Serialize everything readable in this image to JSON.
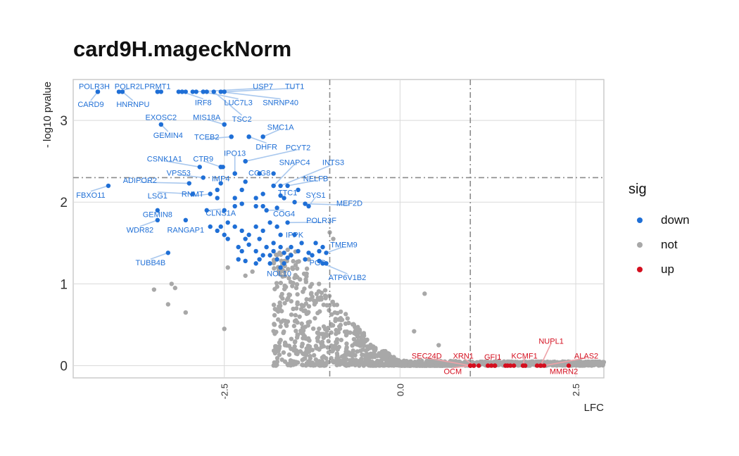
{
  "colors": {
    "down": "#1f6fd6",
    "not": "#a8a8a8",
    "up": "#d40f1f",
    "down_line": "#a9c8ee",
    "up_line": "#eea2a8"
  },
  "chart_data": {
    "type": "scatter",
    "title": "card9H.mageckNorm",
    "xlabel": "LFC",
    "ylabel": "- log10 pvalue",
    "xlim": [
      -4.65,
      2.9
    ],
    "ylim": [
      -0.15,
      3.5
    ],
    "x_ticks": [
      -2.5,
      0.0,
      2.5
    ],
    "x_tick_labels": [
      "-2.5",
      "0.0",
      "2.5"
    ],
    "y_ticks": [
      0,
      1,
      2,
      3
    ],
    "y_tick_labels": [
      "0",
      "1",
      "2",
      "3"
    ],
    "grid": true,
    "threshold_lines": {
      "vertical": [
        -1,
        1
      ],
      "horizontal": [
        2.3
      ]
    },
    "legend": {
      "title": "sig",
      "position": "right",
      "entries": [
        "down",
        "not",
        "up"
      ]
    },
    "labeled_points": [
      {
        "label": "POLR3H",
        "x": -4.3,
        "y": 3.35,
        "sig": "down",
        "lx": -4.35,
        "ly": 3.42
      },
      {
        "label": "POLR2L",
        "x": -4.0,
        "y": 3.35,
        "sig": "down",
        "lx": -3.85,
        "ly": 3.42
      },
      {
        "label": "PRMT1",
        "x": -3.45,
        "y": 3.35,
        "sig": "down",
        "lx": -3.45,
        "ly": 3.42
      },
      {
        "label": "USP7",
        "x": -2.9,
        "y": 3.35,
        "sig": "down",
        "lx": -1.95,
        "ly": 3.42
      },
      {
        "label": "TUT1",
        "x": -2.5,
        "y": 3.35,
        "sig": "down",
        "lx": -1.5,
        "ly": 3.42
      },
      {
        "label": "CARD9",
        "x": -4.3,
        "y": 3.35,
        "sig": "down",
        "lx": -4.4,
        "ly": 3.2
      },
      {
        "label": "HNRNPU",
        "x": -3.95,
        "y": 3.35,
        "sig": "down",
        "lx": -3.8,
        "ly": 3.2
      },
      {
        "label": "IRF8",
        "x": -3.1,
        "y": 3.35,
        "sig": "down",
        "lx": -2.8,
        "ly": 3.22
      },
      {
        "label": "LUC7L3",
        "x": -2.8,
        "y": 3.35,
        "sig": "down",
        "lx": -2.3,
        "ly": 3.22
      },
      {
        "label": "SNRNP40",
        "x": -2.55,
        "y": 3.35,
        "sig": "down",
        "lx": -1.7,
        "ly": 3.22
      },
      {
        "label": "EXOSC2",
        "x": -3.4,
        "y": 2.95,
        "sig": "down",
        "lx": -3.4,
        "ly": 3.04
      },
      {
        "label": "MIS18A",
        "x": -2.5,
        "y": 2.95,
        "sig": "down",
        "lx": -2.75,
        "ly": 3.04
      },
      {
        "label": "TSC2",
        "x": -2.65,
        "y": 3.35,
        "sig": "down",
        "lx": -2.25,
        "ly": 3.02
      },
      {
        "label": "SMC1A",
        "x": -1.95,
        "y": 2.8,
        "sig": "down",
        "lx": -1.7,
        "ly": 2.92
      },
      {
        "label": "GEMIN4",
        "x": -3.4,
        "y": 2.95,
        "sig": "down",
        "lx": -3.3,
        "ly": 2.82
      },
      {
        "label": "TCEB2",
        "x": -2.4,
        "y": 2.8,
        "sig": "down",
        "lx": -2.75,
        "ly": 2.8
      },
      {
        "label": "DHFR",
        "x": -2.15,
        "y": 2.8,
        "sig": "down",
        "lx": -1.9,
        "ly": 2.68
      },
      {
        "label": "PCYT2",
        "x": -2.2,
        "y": 2.5,
        "sig": "down",
        "lx": -1.45,
        "ly": 2.67
      },
      {
        "label": "IPO13",
        "x": -2.35,
        "y": 2.35,
        "sig": "down",
        "lx": -2.35,
        "ly": 2.6
      },
      {
        "label": "CSNK1A1",
        "x": -2.85,
        "y": 2.43,
        "sig": "down",
        "lx": -3.35,
        "ly": 2.53
      },
      {
        "label": "CTR9",
        "x": -2.55,
        "y": 2.43,
        "sig": "down",
        "lx": -2.8,
        "ly": 2.53
      },
      {
        "label": "SNAPC4",
        "x": -1.8,
        "y": 2.2,
        "sig": "down",
        "lx": -1.5,
        "ly": 2.49
      },
      {
        "label": "INTS3",
        "x": -1.7,
        "y": 2.2,
        "sig": "down",
        "lx": -0.95,
        "ly": 2.49
      },
      {
        "label": "VPS53",
        "x": -2.8,
        "y": 2.3,
        "sig": "down",
        "lx": -3.15,
        "ly": 2.36
      },
      {
        "label": "COG8",
        "x": -2.0,
        "y": 2.35,
        "sig": "down",
        "lx": -2.0,
        "ly": 2.36
      },
      {
        "label": "ADIPOR2",
        "x": -3.0,
        "y": 2.23,
        "sig": "down",
        "lx": -3.7,
        "ly": 2.27
      },
      {
        "label": "IMP4",
        "x": -2.55,
        "y": 2.23,
        "sig": "down",
        "lx": -2.55,
        "ly": 2.29
      },
      {
        "label": "NELFB",
        "x": -1.6,
        "y": 2.2,
        "sig": "down",
        "lx": -1.2,
        "ly": 2.29
      },
      {
        "label": "FBXO11",
        "x": -4.15,
        "y": 2.2,
        "sig": "down",
        "lx": -4.4,
        "ly": 2.09
      },
      {
        "label": "LSG1",
        "x": -2.95,
        "y": 2.1,
        "sig": "down",
        "lx": -3.45,
        "ly": 2.08
      },
      {
        "label": "RNMT",
        "x": -2.7,
        "y": 2.1,
        "sig": "down",
        "lx": -2.95,
        "ly": 2.1
      },
      {
        "label": "TTC1",
        "x": -1.65,
        "y": 2.05,
        "sig": "down",
        "lx": -1.6,
        "ly": 2.12
      },
      {
        "label": "SYS1",
        "x": -1.3,
        "y": 1.95,
        "sig": "down",
        "lx": -1.2,
        "ly": 2.09
      },
      {
        "label": "MEF2D",
        "x": -1.35,
        "y": 1.98,
        "sig": "down",
        "lx": -0.72,
        "ly": 1.99
      },
      {
        "label": "GEMIN8",
        "x": -3.45,
        "y": 1.9,
        "sig": "down",
        "lx": -3.45,
        "ly": 1.85
      },
      {
        "label": "CLNS1A",
        "x": -2.75,
        "y": 1.9,
        "sig": "down",
        "lx": -2.55,
        "ly": 1.87
      },
      {
        "label": "COG4",
        "x": -1.9,
        "y": 1.9,
        "sig": "down",
        "lx": -1.65,
        "ly": 1.86
      },
      {
        "label": "POLR3F",
        "x": -1.6,
        "y": 1.75,
        "sig": "down",
        "lx": -1.12,
        "ly": 1.78
      },
      {
        "label": "WDR82",
        "x": -3.45,
        "y": 1.78,
        "sig": "down",
        "lx": -3.7,
        "ly": 1.66
      },
      {
        "label": "RANGAP1",
        "x": -3.05,
        "y": 1.78,
        "sig": "down",
        "lx": -3.05,
        "ly": 1.66
      },
      {
        "label": "IPPK",
        "x": -1.5,
        "y": 1.6,
        "sig": "down",
        "lx": -1.5,
        "ly": 1.6
      },
      {
        "label": "TMEM9",
        "x": -1.05,
        "y": 1.38,
        "sig": "down",
        "lx": -0.8,
        "ly": 1.48
      },
      {
        "label": "TUBB4B",
        "x": -3.3,
        "y": 1.38,
        "sig": "down",
        "lx": -3.55,
        "ly": 1.26
      },
      {
        "label": "PGD",
        "x": -1.05,
        "y": 1.25,
        "sig": "down",
        "lx": -1.17,
        "ly": 1.26
      },
      {
        "label": "NOL10",
        "x": -1.7,
        "y": 1.2,
        "sig": "down",
        "lx": -1.72,
        "ly": 1.13
      },
      {
        "label": "ATP6V1B2",
        "x": -1.1,
        "y": 1.25,
        "sig": "down",
        "lx": -0.75,
        "ly": 1.08
      },
      {
        "label": "SEC24D",
        "x": 1.0,
        "y": 0.0,
        "sig": "up",
        "lx": 0.38,
        "ly": 0.12
      },
      {
        "label": "XRN1",
        "x": 1.05,
        "y": 0.0,
        "sig": "up",
        "lx": 0.9,
        "ly": 0.12
      },
      {
        "label": "GFI1",
        "x": 1.35,
        "y": 0.0,
        "sig": "up",
        "lx": 1.32,
        "ly": 0.11
      },
      {
        "label": "KCMF1",
        "x": 1.75,
        "y": 0.0,
        "sig": "up",
        "lx": 1.77,
        "ly": 0.12
      },
      {
        "label": "NUPL1",
        "x": 2.0,
        "y": 0.0,
        "sig": "up",
        "lx": 2.15,
        "ly": 0.3
      },
      {
        "label": "ALAS2",
        "x": 2.05,
        "y": 0.0,
        "sig": "up",
        "lx": 2.65,
        "ly": 0.12
      },
      {
        "label": "OCM",
        "x": 1.0,
        "y": 0.0,
        "sig": "up",
        "lx": 0.75,
        "ly": -0.07
      },
      {
        "label": "MMRN2",
        "x": 2.4,
        "y": 0.0,
        "sig": "up",
        "lx": 2.33,
        "ly": -0.07
      }
    ],
    "extra_down_points": [
      [
        -4.3,
        3.35
      ],
      [
        -3.95,
        3.35
      ],
      [
        -3.45,
        3.35
      ],
      [
        -3.4,
        3.35
      ],
      [
        -3.15,
        3.35
      ],
      [
        -3.1,
        3.35
      ],
      [
        -3.05,
        3.35
      ],
      [
        -2.95,
        3.35
      ],
      [
        -2.8,
        3.35
      ],
      [
        -2.75,
        3.35
      ],
      [
        -2.5,
        3.35
      ],
      [
        -2.5,
        2.95
      ],
      [
        -2.4,
        2.8
      ],
      [
        -2.15,
        2.8
      ],
      [
        -1.95,
        2.8
      ],
      [
        -2.2,
        2.5
      ],
      [
        -2.55,
        2.43
      ],
      [
        -2.52,
        2.43
      ],
      [
        -2.35,
        2.35
      ],
      [
        -1.8,
        2.35
      ],
      [
        -2.6,
        2.15
      ],
      [
        -2.2,
        2.25
      ],
      [
        -2.25,
        2.15
      ],
      [
        -1.8,
        2.2
      ],
      [
        -1.95,
        2.1
      ],
      [
        -2.05,
        2.05
      ],
      [
        -2.6,
        2.05
      ],
      [
        -2.35,
        2.05
      ],
      [
        -1.7,
        2.08
      ],
      [
        -1.45,
        2.15
      ],
      [
        -1.5,
        2.0
      ],
      [
        -2.5,
        1.9
      ],
      [
        -2.35,
        1.95
      ],
      [
        -2.25,
        1.98
      ],
      [
        -2.05,
        1.95
      ],
      [
        -1.95,
        1.95
      ],
      [
        -1.75,
        1.93
      ],
      [
        -2.7,
        1.7
      ],
      [
        -2.6,
        1.65
      ],
      [
        -2.55,
        1.7
      ],
      [
        -2.45,
        1.75
      ],
      [
        -2.35,
        1.7
      ],
      [
        -2.25,
        1.65
      ],
      [
        -2.15,
        1.6
      ],
      [
        -2.05,
        1.7
      ],
      [
        -1.95,
        1.65
      ],
      [
        -1.85,
        1.75
      ],
      [
        -1.75,
        1.7
      ],
      [
        -1.7,
        1.6
      ],
      [
        -2.5,
        1.6
      ],
      [
        -2.45,
        1.55
      ],
      [
        -2.2,
        1.55
      ],
      [
        -2.0,
        1.55
      ],
      [
        -1.9,
        1.45
      ],
      [
        -1.8,
        1.5
      ],
      [
        -2.3,
        1.45
      ],
      [
        -2.15,
        1.48
      ],
      [
        -1.55,
        1.45
      ],
      [
        -1.4,
        1.5
      ],
      [
        -1.2,
        1.5
      ],
      [
        -1.1,
        1.45
      ],
      [
        -2.25,
        1.4
      ],
      [
        -2.05,
        1.4
      ],
      [
        -1.85,
        1.35
      ],
      [
        -1.65,
        1.38
      ],
      [
        -1.45,
        1.4
      ],
      [
        -1.25,
        1.35
      ],
      [
        -2.3,
        1.3
      ],
      [
        -2.2,
        1.28
      ],
      [
        -2.0,
        1.3
      ],
      [
        -1.95,
        1.35
      ],
      [
        -1.75,
        1.3
      ],
      [
        -1.6,
        1.32
      ],
      [
        -1.35,
        1.3
      ],
      [
        -1.15,
        1.28
      ],
      [
        -2.05,
        1.25
      ],
      [
        -1.85,
        1.25
      ],
      [
        -1.65,
        1.25
      ],
      [
        -1.55,
        1.35
      ],
      [
        -1.3,
        1.38
      ],
      [
        -1.15,
        1.4
      ],
      [
        -1.8,
        1.4
      ],
      [
        -1.7,
        1.45
      ]
    ],
    "extra_up_points": [
      [
        1.0,
        0.0
      ],
      [
        1.05,
        0.0
      ],
      [
        1.12,
        0.0
      ],
      [
        1.25,
        0.0
      ],
      [
        1.3,
        0.0
      ],
      [
        1.35,
        0.0
      ],
      [
        1.5,
        0.0
      ],
      [
        1.53,
        0.0
      ],
      [
        1.57,
        0.0
      ],
      [
        1.62,
        0.0
      ],
      [
        1.75,
        0.0
      ],
      [
        1.78,
        0.0
      ],
      [
        1.95,
        0.0
      ],
      [
        2.0,
        0.0
      ]
    ]
  }
}
